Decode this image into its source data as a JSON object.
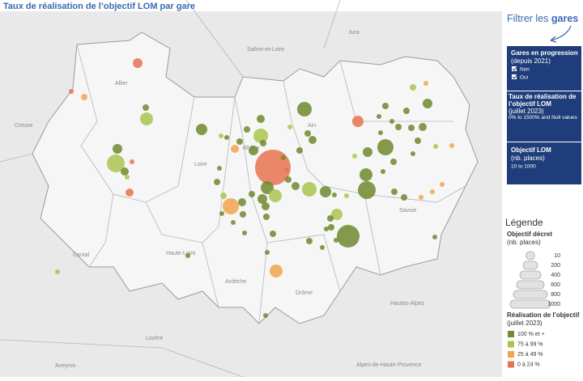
{
  "title": "Taux de réalisation de l’objectif LOM par gare",
  "filter": {
    "heading_prefix": "Filtrer les",
    "heading_bold": "gares",
    "panels": [
      {
        "title": "Gares en progression",
        "subtitle": "(depuis 2021)",
        "options": [
          "Non",
          "Oui"
        ]
      },
      {
        "title": "Taux de réalisation de l’objectif LOM",
        "subtitle": "(juillet 2023)",
        "range": "0% to 1500% and Null values"
      },
      {
        "title": "Objectif LOM",
        "subtitle": "(nb. places)",
        "range": "10 to 1000"
      }
    ]
  },
  "legend": {
    "title": "Légende",
    "size_title": "Objectif décret",
    "size_subtitle": "(nb. places)",
    "sizes": [
      10,
      200,
      400,
      600,
      800,
      1000
    ],
    "color_title": "Réalisation de l’objectif",
    "color_subtitle": "(juillet 2023)",
    "colors": [
      {
        "label": "100 % et +",
        "color": "#6f8a2f"
      },
      {
        "label": "75 à 99 %",
        "color": "#a9c450"
      },
      {
        "label": "25 à 49 %",
        "color": "#f0a54e"
      },
      {
        "label": "0 à 24 %",
        "color": "#e6734f"
      }
    ]
  },
  "map": {
    "labels": [
      "Jura",
      "Saône-et-Loire",
      "Ain",
      "Allier",
      "Creuse",
      "Loire",
      "Rhône",
      "Cantal",
      "Haute-Loire",
      "Ardèche",
      "Drôme",
      "Savoie",
      "Hautes-Alpes",
      "Lozère",
      "Aveyron",
      "Alpes-de-Haute-Provence"
    ]
  }
}
